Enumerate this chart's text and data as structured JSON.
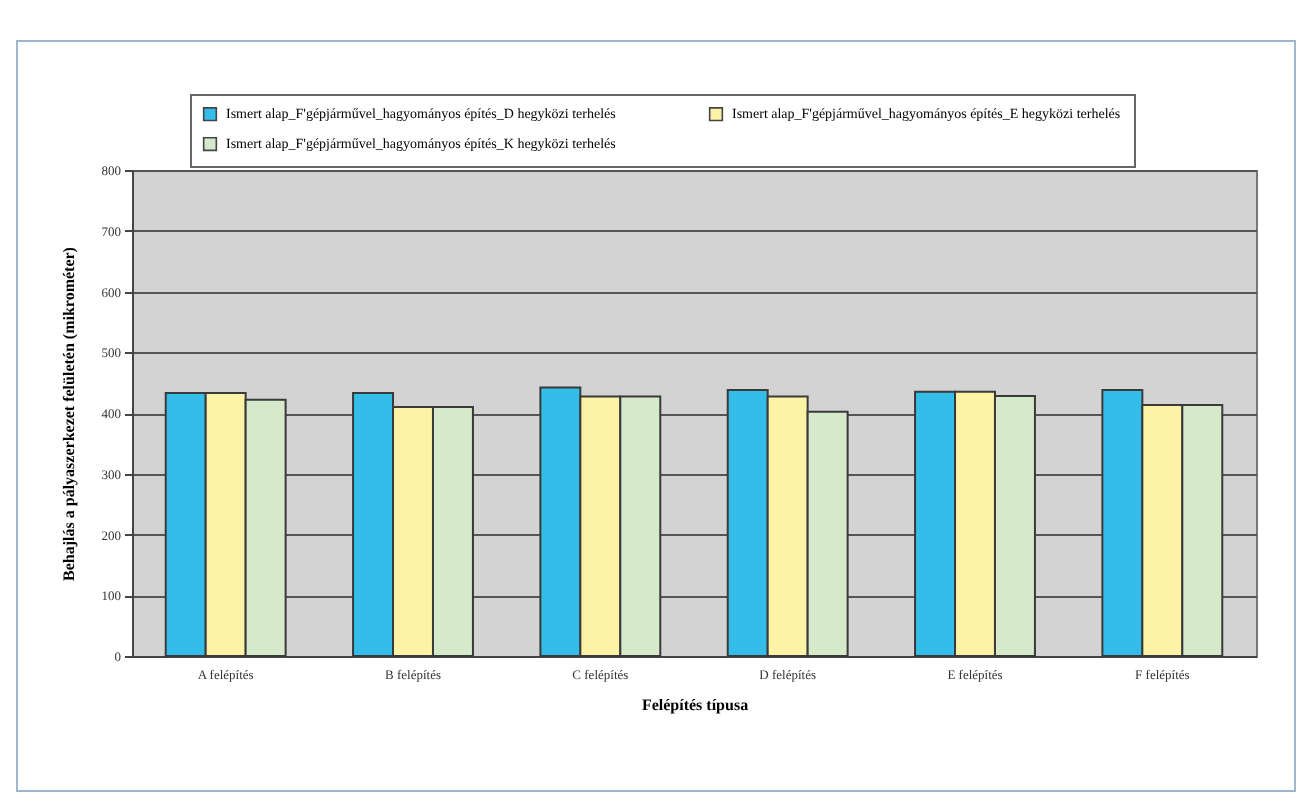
{
  "chart_data": {
    "type": "bar",
    "xlabel": "Felépítés típusa",
    "ylabel": "Behajlás a pályaszerkezet felületén (mikrométer)",
    "categories": [
      "A felépítés",
      "B felépítés",
      "C felépítés",
      "D felépítés",
      "E felépítés",
      "F felépítés"
    ],
    "series": [
      {
        "name": "Ismert alap_F'gépjárművel_hagyományos építés_D hegyközi terhelés",
        "color": "#33bde8",
        "values": [
          433,
          433,
          442,
          438,
          435,
          438
        ]
      },
      {
        "name": "Ismert alap_F'gépjárművel_hagyományos építés_E hegyközi terhelés",
        "color": "#fcf3a6",
        "values": [
          433,
          410,
          427,
          427,
          435,
          413
        ]
      },
      {
        "name": "Ismert alap_F'gépjárművel_hagyományos építés_K hegyközi terhelés",
        "color": "#d6e9cb",
        "values": [
          422,
          410,
          427,
          402,
          428,
          413
        ]
      }
    ],
    "ylim": [
      0,
      800
    ],
    "yticks": [
      0,
      100,
      200,
      300,
      400,
      500,
      600,
      700,
      800
    ],
    "grid": "y",
    "legend": "top"
  }
}
